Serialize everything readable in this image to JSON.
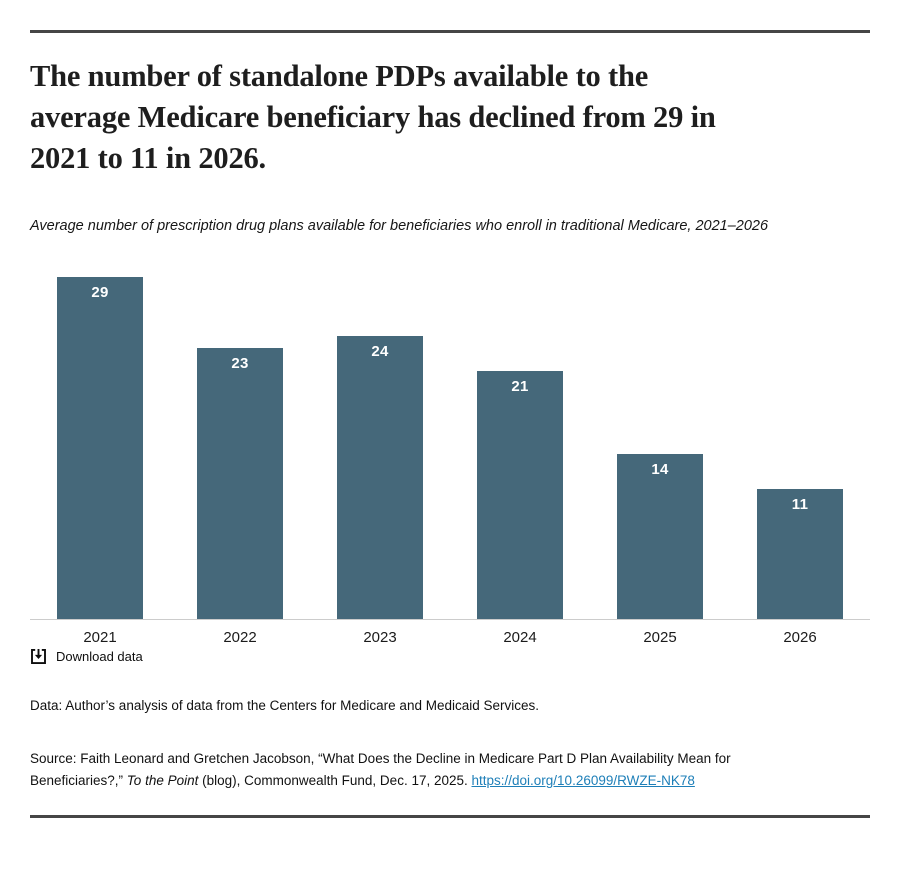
{
  "page": {
    "title": "The number of standalone PDPs available to the\naverage Medicare beneficiary has declined from 29 in\n2021 to 11 in 2026.",
    "subtitle": "Average number of prescription drug plans available for beneficiaries who enroll in traditional Medicare, 2021–2026"
  },
  "chart_data": {
    "type": "bar",
    "categories": [
      "2021",
      "2022",
      "2023",
      "2024",
      "2025",
      "2026"
    ],
    "values": [
      29,
      23,
      24,
      21,
      14,
      11
    ],
    "title": "The number of standalone PDPs available to the average Medicare beneficiary has declined from 29 in 2021 to 11 in 2026.",
    "subtitle": "Average number of prescription drug plans available for beneficiaries who enroll in traditional Medicare, 2021–2026",
    "xlabel": "",
    "ylabel": "",
    "ylim": [
      0,
      29
    ],
    "grid": false,
    "legend": false,
    "value_labels": "inside-top, white, bold",
    "bar_color": "#45687a"
  },
  "download": {
    "label": "Download data",
    "icon": "download-bracket-icon"
  },
  "notes": {
    "data_note": "Data: Author’s analysis of data from the Centers for Medicare and Medicaid Services.",
    "source_prefix": "Source: Faith Leonard and Gretchen Jacobson, “What Does the Decline in Medicare Part D Plan Availability Mean for Beneficiaries?,” ",
    "source_italic": "To the Point",
    "source_suffix": " (blog), Commonwealth Fund, Dec. 17, 2025. ",
    "source_link": "https://doi.org/10.26099/RWZE-NK78"
  },
  "colors": {
    "bar": "#45687a",
    "rule": "#464646",
    "axis_line": "#cccccc",
    "link": "#1e7fb8",
    "value_label": "#ffffff"
  }
}
